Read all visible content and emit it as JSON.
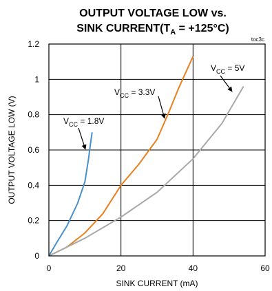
{
  "chart_data": {
    "type": "line",
    "title_line1": "OUTPUT VOLTAGE LOW vs.",
    "title_line2_prefix": "SINK CURRENT(T",
    "title_line2_sub": "A",
    "title_line2_suffix": " = +125°C)",
    "figure_code": "toc3c",
    "xlabel": "SINK CURRENT (mA)",
    "ylabel": "OUTPUT VOLTAGE LOW (V)",
    "xlim": [
      0,
      60
    ],
    "ylim": [
      0,
      1.2
    ],
    "x_ticks": [
      0,
      20,
      40,
      60
    ],
    "y_ticks": [
      0,
      0.2,
      0.4,
      0.6,
      0.8,
      1,
      1.2
    ],
    "x_tick_labels": [
      "0",
      "20",
      "40",
      "60"
    ],
    "y_tick_labels": [
      "0",
      "0.2",
      "0.4",
      "0.6",
      "0.8",
      "1",
      "1.2"
    ],
    "grid": true,
    "series": [
      {
        "name": "VCC = 1.8V",
        "label_pre": "V",
        "label_sub": "CC",
        "label_post": " = 1.8V",
        "color": "#4a90c8",
        "points": [
          [
            0,
            0
          ],
          [
            2,
            0.07
          ],
          [
            5,
            0.17
          ],
          [
            8,
            0.3
          ],
          [
            10,
            0.42
          ],
          [
            11,
            0.55
          ],
          [
            11.5,
            0.63
          ],
          [
            12,
            0.7
          ]
        ]
      },
      {
        "name": "VCC = 3.3V",
        "label_pre": "V",
        "label_sub": "CC",
        "label_post": " = 3.3V",
        "color": "#e8801e",
        "points": [
          [
            0,
            0
          ],
          [
            5,
            0.05
          ],
          [
            10,
            0.13
          ],
          [
            15,
            0.24
          ],
          [
            20,
            0.4
          ],
          [
            25,
            0.52
          ],
          [
            30,
            0.66
          ],
          [
            33,
            0.8
          ],
          [
            36,
            0.95
          ],
          [
            40,
            1.13
          ]
        ]
      },
      {
        "name": "VCC = 5V",
        "label_pre": "V",
        "label_sub": "CC",
        "label_post": " = 5V",
        "color": "#a8a8a8",
        "points": [
          [
            0,
            0
          ],
          [
            10,
            0.1
          ],
          [
            20,
            0.22
          ],
          [
            30,
            0.36
          ],
          [
            40,
            0.55
          ],
          [
            48,
            0.75
          ],
          [
            54,
            0.96
          ]
        ]
      }
    ]
  }
}
